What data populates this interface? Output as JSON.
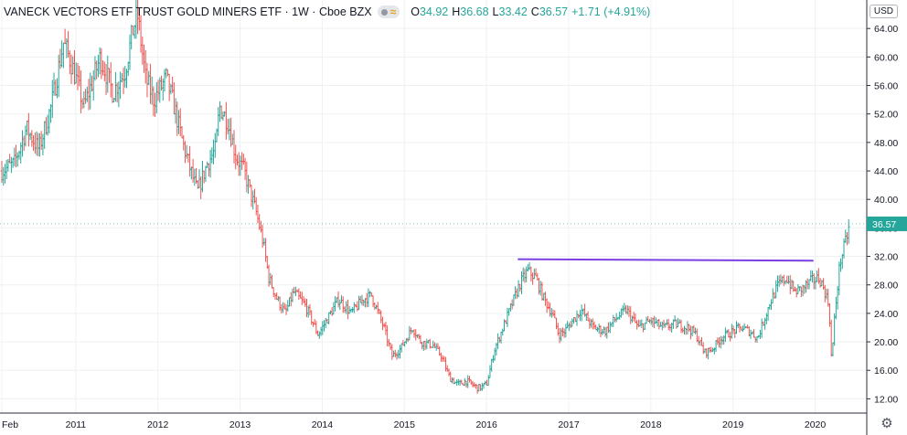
{
  "header": {
    "title": "VANECK VECTORS ETF TRUST GOLD MINERS ETF · 1W · Cboe BZX",
    "ohlc": [
      {
        "label": "O",
        "value": "34.92"
      },
      {
        "label": "H",
        "value": "36.68"
      },
      {
        "label": "L",
        "value": "33.42"
      },
      {
        "label": "C",
        "value": "36.57"
      }
    ],
    "change": "+1.71 (+4.91%)"
  },
  "currency": "USD",
  "colors": {
    "up": "#26a69a",
    "down": "#ef5350",
    "trendline": "#7b3fe4",
    "last_price_tag": "#26a69a"
  },
  "icons": {
    "status": "dot-icon",
    "compare": "approx-icon",
    "settings": "gear-icon"
  },
  "chart_data": {
    "type": "ohlc",
    "title": "VANECK VECTORS ETF TRUST GOLD MINERS ETF",
    "interval": "1W",
    "exchange": "Cboe BZX",
    "x_range": [
      2010.1,
      2020.45
    ],
    "ylim": [
      10,
      68
    ],
    "y_ticks": [
      "12.00",
      "16.00",
      "20.00",
      "24.00",
      "28.00",
      "32.00",
      "36.00",
      "40.00",
      "44.00",
      "48.00",
      "52.00",
      "56.00",
      "60.00",
      "64.00"
    ],
    "x_ticks": [
      {
        "label": "Feb",
        "x": 2010.1
      },
      {
        "label": "2011",
        "x": 2011.0
      },
      {
        "label": "2012",
        "x": 2012.0
      },
      {
        "label": "2013",
        "x": 2013.0
      },
      {
        "label": "2014",
        "x": 2014.0
      },
      {
        "label": "2015",
        "x": 2015.0
      },
      {
        "label": "2016",
        "x": 2016.0
      },
      {
        "label": "2017",
        "x": 2017.0
      },
      {
        "label": "2018",
        "x": 2018.0
      },
      {
        "label": "2019",
        "x": 2019.0
      },
      {
        "label": "2020",
        "x": 2020.0
      }
    ],
    "last_price": "36.57",
    "price_path": [
      [
        2010.1,
        44.0
      ],
      [
        2010.25,
        45.0
      ],
      [
        2010.4,
        50.0
      ],
      [
        2010.55,
        47.0
      ],
      [
        2010.7,
        53.0
      ],
      [
        2010.85,
        62.0
      ],
      [
        2010.95,
        59.0
      ],
      [
        2011.1,
        53.0
      ],
      [
        2011.3,
        60.0
      ],
      [
        2011.45,
        55.0
      ],
      [
        2011.6,
        58.0
      ],
      [
        2011.7,
        64.0
      ],
      [
        2011.75,
        66.0
      ],
      [
        2011.85,
        57.0
      ],
      [
        2011.95,
        54.0
      ],
      [
        2012.1,
        57.0
      ],
      [
        2012.2,
        53.0
      ],
      [
        2012.3,
        48.0
      ],
      [
        2012.4,
        44.0
      ],
      [
        2012.48,
        41.0
      ],
      [
        2012.6,
        45.0
      ],
      [
        2012.7,
        47.0
      ],
      [
        2012.75,
        53.0
      ],
      [
        2012.85,
        51.0
      ],
      [
        2012.95,
        46.0
      ],
      [
        2013.05,
        44.0
      ],
      [
        2013.2,
        38.0
      ],
      [
        2013.28,
        34.0
      ],
      [
        2013.35,
        29.0
      ],
      [
        2013.45,
        26.0
      ],
      [
        2013.55,
        24.0
      ],
      [
        2013.65,
        27.0
      ],
      [
        2013.8,
        25.0
      ],
      [
        2013.95,
        21.0
      ],
      [
        2014.1,
        24.0
      ],
      [
        2014.2,
        26.0
      ],
      [
        2014.35,
        24.0
      ],
      [
        2014.5,
        26.0
      ],
      [
        2014.6,
        26.5
      ],
      [
        2014.75,
        22.0
      ],
      [
        2014.85,
        18.0
      ],
      [
        2014.95,
        19.0
      ],
      [
        2015.1,
        22.0
      ],
      [
        2015.2,
        20.0
      ],
      [
        2015.35,
        19.5
      ],
      [
        2015.45,
        18.0
      ],
      [
        2015.55,
        15.0
      ],
      [
        2015.65,
        14.0
      ],
      [
        2015.75,
        14.5
      ],
      [
        2015.9,
        13.5
      ],
      [
        2016.0,
        14.0
      ],
      [
        2016.1,
        19.0
      ],
      [
        2016.2,
        22.0
      ],
      [
        2016.3,
        25.0
      ],
      [
        2016.4,
        28.0
      ],
      [
        2016.5,
        30.0
      ],
      [
        2016.6,
        29.0
      ],
      [
        2016.7,
        26.0
      ],
      [
        2016.8,
        24.0
      ],
      [
        2016.88,
        21.0
      ],
      [
        2016.95,
        21.5
      ],
      [
        2017.05,
        23.0
      ],
      [
        2017.15,
        24.5
      ],
      [
        2017.3,
        22.0
      ],
      [
        2017.45,
        21.5
      ],
      [
        2017.55,
        23.0
      ],
      [
        2017.7,
        24.5
      ],
      [
        2017.85,
        22.0
      ],
      [
        2018.0,
        23.0
      ],
      [
        2018.15,
        22.0
      ],
      [
        2018.3,
        22.5
      ],
      [
        2018.45,
        22.0
      ],
      [
        2018.55,
        21.0
      ],
      [
        2018.65,
        18.5
      ],
      [
        2018.75,
        19.0
      ],
      [
        2018.85,
        20.5
      ],
      [
        2019.0,
        21.5
      ],
      [
        2019.1,
        22.0
      ],
      [
        2019.2,
        21.5
      ],
      [
        2019.3,
        20.5
      ],
      [
        2019.45,
        25.5
      ],
      [
        2019.55,
        28.0
      ],
      [
        2019.65,
        29.0
      ],
      [
        2019.75,
        27.0
      ],
      [
        2019.85,
        27.5
      ],
      [
        2019.95,
        28.5
      ],
      [
        2020.05,
        29.0
      ],
      [
        2020.12,
        27.0
      ],
      [
        2020.17,
        25.0
      ],
      [
        2020.2,
        17.0
      ],
      [
        2020.24,
        24.0
      ],
      [
        2020.3,
        31.0
      ],
      [
        2020.38,
        34.5
      ],
      [
        2020.42,
        36.57
      ]
    ],
    "trendline": [
      [
        2016.38,
        31.6
      ],
      [
        2019.98,
        31.4
      ]
    ]
  }
}
